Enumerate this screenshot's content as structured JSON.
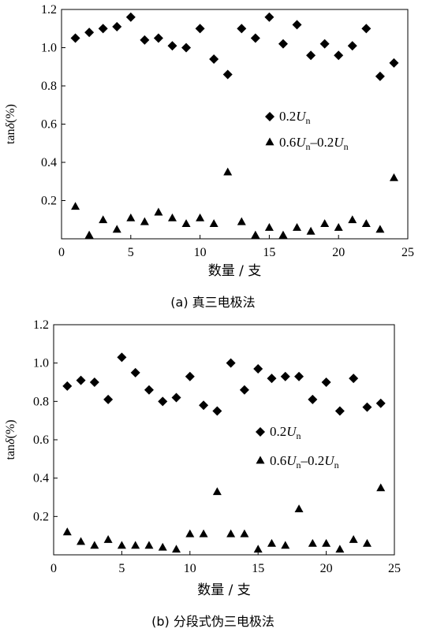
{
  "chart_data": [
    {
      "type": "scatter",
      "caption": "(a) 真三电极法",
      "xlabel": "数量 / 支",
      "ylabel_prefix": "tan",
      "ylabel_delta": "δ",
      "ylabel_suffix": "(%)",
      "xlim": [
        0,
        25
      ],
      "ylim": [
        0,
        1.2
      ],
      "xticks": [
        "0",
        "5",
        "10",
        "15",
        "20",
        "25"
      ],
      "yticks": [
        "0.2",
        "0.4",
        "0.6",
        "0.8",
        "1.0",
        "1.2"
      ],
      "series": [
        {
          "legend": {
            "coef": "0.2",
            "sym": "U",
            "sub": "n"
          },
          "marker": "diamond",
          "points": [
            [
              1,
              1.05
            ],
            [
              2,
              1.08
            ],
            [
              3,
              1.1
            ],
            [
              4,
              1.11
            ],
            [
              5,
              1.16
            ],
            [
              6,
              1.04
            ],
            [
              7,
              1.05
            ],
            [
              8,
              1.01
            ],
            [
              9,
              1.0
            ],
            [
              10,
              1.1
            ],
            [
              11,
              0.94
            ],
            [
              12,
              0.86
            ],
            [
              13,
              1.1
            ],
            [
              14,
              1.05
            ],
            [
              15,
              1.16
            ],
            [
              16,
              1.02
            ],
            [
              17,
              1.12
            ],
            [
              18,
              0.96
            ],
            [
              19,
              1.02
            ],
            [
              20,
              0.96
            ],
            [
              21,
              1.01
            ],
            [
              22,
              1.1
            ],
            [
              23,
              0.85
            ],
            [
              24,
              0.92
            ]
          ]
        },
        {
          "legend": {
            "coef1": "0.6",
            "sym1": "U",
            "sub1": "n",
            "dash": "–",
            "coef2": "0.2",
            "sym2": "U",
            "sub2": "n"
          },
          "marker": "triangle",
          "points": [
            [
              1,
              0.17
            ],
            [
              2,
              0.02
            ],
            [
              3,
              0.1
            ],
            [
              4,
              0.05
            ],
            [
              5,
              0.11
            ],
            [
              6,
              0.09
            ],
            [
              7,
              0.14
            ],
            [
              8,
              0.11
            ],
            [
              9,
              0.08
            ],
            [
              10,
              0.11
            ],
            [
              11,
              0.08
            ],
            [
              12,
              0.35
            ],
            [
              13,
              0.09
            ],
            [
              14,
              0.02
            ],
            [
              15,
              0.06
            ],
            [
              16,
              0.02
            ],
            [
              17,
              0.06
            ],
            [
              18,
              0.04
            ],
            [
              19,
              0.08
            ],
            [
              20,
              0.06
            ],
            [
              21,
              0.1
            ],
            [
              22,
              0.08
            ],
            [
              23,
              0.05
            ],
            [
              24,
              0.32
            ]
          ]
        }
      ]
    },
    {
      "type": "scatter",
      "caption": "(b) 分段式伪三电极法",
      "xlabel": "数量 / 支",
      "ylabel_prefix": "tan",
      "ylabel_delta": "δ",
      "ylabel_suffix": "(%)",
      "xlim": [
        0,
        25
      ],
      "ylim": [
        0,
        1.2
      ],
      "xticks": [
        "0",
        "5",
        "10",
        "15",
        "20",
        "25"
      ],
      "yticks": [
        "0.2",
        "0.4",
        "0.6",
        "0.8",
        "1.0",
        "1.2"
      ],
      "series": [
        {
          "legend": {
            "coef": "0.2",
            "sym": "U",
            "sub": "n"
          },
          "marker": "diamond",
          "points": [
            [
              1,
              0.88
            ],
            [
              2,
              0.91
            ],
            [
              3,
              0.9
            ],
            [
              4,
              0.81
            ],
            [
              5,
              1.03
            ],
            [
              6,
              0.95
            ],
            [
              7,
              0.86
            ],
            [
              8,
              0.8
            ],
            [
              9,
              0.82
            ],
            [
              10,
              0.93
            ],
            [
              11,
              0.78
            ],
            [
              12,
              0.75
            ],
            [
              13,
              1.0
            ],
            [
              14,
              0.86
            ],
            [
              15,
              0.97
            ],
            [
              16,
              0.92
            ],
            [
              17,
              0.93
            ],
            [
              18,
              0.93
            ],
            [
              19,
              0.81
            ],
            [
              20,
              0.9
            ],
            [
              21,
              0.75
            ],
            [
              22,
              0.92
            ],
            [
              23,
              0.77
            ],
            [
              24,
              0.79
            ]
          ]
        },
        {
          "legend": {
            "coef1": "0.6",
            "sym1": "U",
            "sub1": "n",
            "dash": "–",
            "coef2": "0.2",
            "sym2": "U",
            "sub2": "n"
          },
          "marker": "triangle",
          "points": [
            [
              1,
              0.12
            ],
            [
              2,
              0.07
            ],
            [
              3,
              0.05
            ],
            [
              4,
              0.08
            ],
            [
              5,
              0.05
            ],
            [
              6,
              0.05
            ],
            [
              7,
              0.05
            ],
            [
              8,
              0.04
            ],
            [
              9,
              0.03
            ],
            [
              10,
              0.11
            ],
            [
              11,
              0.11
            ],
            [
              12,
              0.33
            ],
            [
              13,
              0.11
            ],
            [
              14,
              0.11
            ],
            [
              15,
              0.03
            ],
            [
              16,
              0.06
            ],
            [
              17,
              0.05
            ],
            [
              18,
              0.24
            ],
            [
              19,
              0.06
            ],
            [
              20,
              0.06
            ],
            [
              21,
              0.03
            ],
            [
              22,
              0.08
            ],
            [
              23,
              0.06
            ],
            [
              24,
              0.35
            ]
          ]
        }
      ]
    }
  ]
}
